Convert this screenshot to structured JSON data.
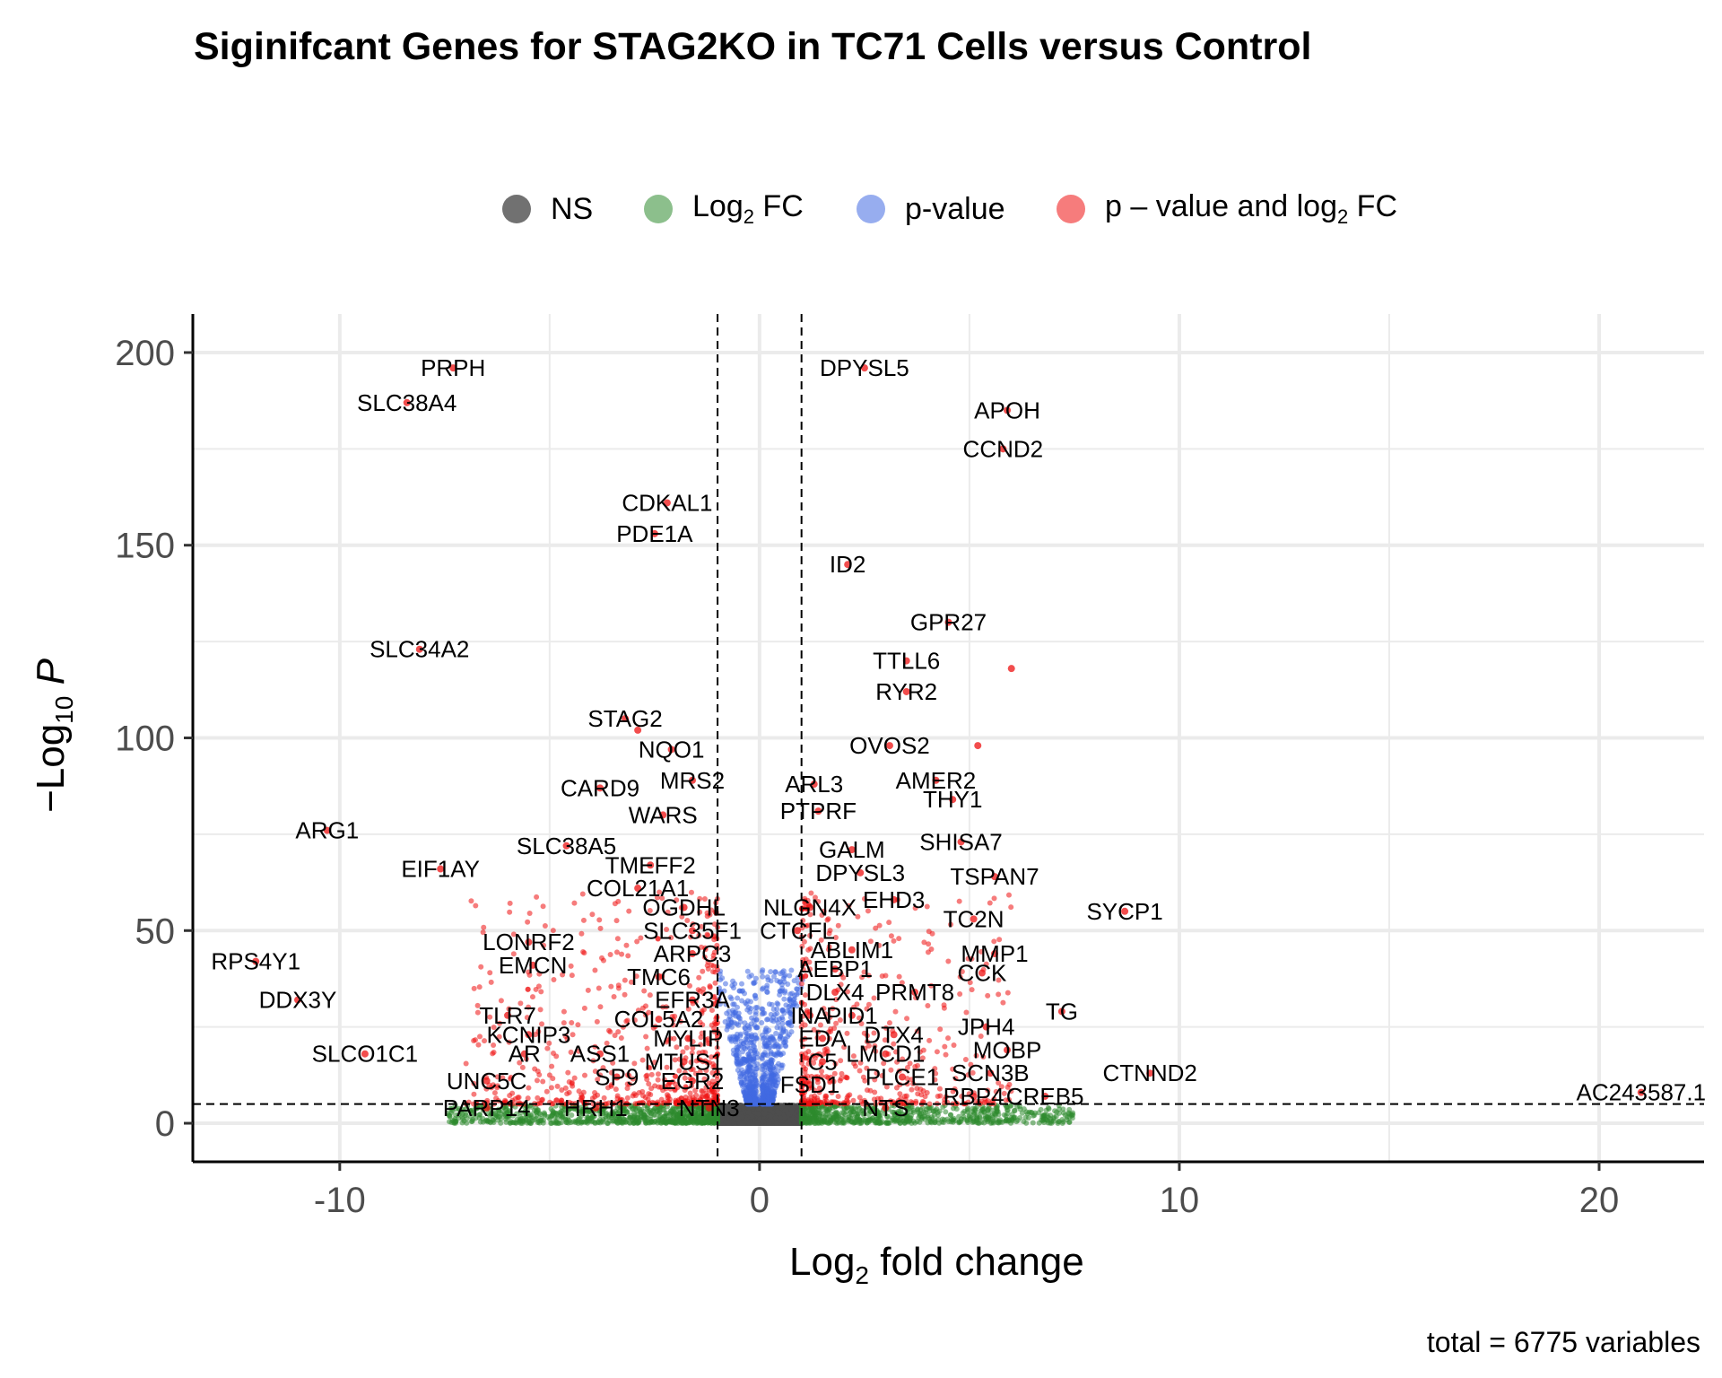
{
  "chart_data": {
    "type": "scatter",
    "title": "Siginifcant Genes for STAG2KO in TC71 Cells versus Control",
    "xlabel_main": "Log",
    "xlabel_sub": "2",
    "xlabel_rest": " fold change",
    "ylabel_main": "−Log",
    "ylabel_sub": "10",
    "ylabel_rest": " P",
    "caption": "total = 6775 variables",
    "xlim": [
      -13.5,
      22.5
    ],
    "ylim": [
      -10,
      210
    ],
    "x_ticks": [
      -10,
      0,
      10,
      20
    ],
    "y_ticks": [
      0,
      50,
      100,
      150,
      200
    ],
    "x_tick_labels": [
      "-10",
      "0",
      "10",
      "20"
    ],
    "y_tick_labels": [
      "0",
      "50",
      "100",
      "150",
      "200"
    ],
    "fc_cutoff": 1,
    "p_cutoff": 5,
    "grid": true,
    "legend_position": "top",
    "legend": [
      {
        "key": "NS",
        "label": "NS",
        "color": "#4d4d4d"
      },
      {
        "key": "fc",
        "label": "Log",
        "sub": "2",
        "rest": " FC",
        "color": "#2e8b2e"
      },
      {
        "key": "p",
        "label": "p-value",
        "color": "#4169e1"
      },
      {
        "key": "both",
        "label": "p – value and log",
        "sub": "2",
        "rest": " FC",
        "color": "#ee1111"
      }
    ],
    "labeled_genes": [
      {
        "name": "PRPH",
        "x": -7.3,
        "y": 196
      },
      {
        "name": "SLC38A4",
        "x": -8.4,
        "y": 187
      },
      {
        "name": "DPYSL5",
        "x": 2.5,
        "y": 196
      },
      {
        "name": "APOH",
        "x": 5.9,
        "y": 185
      },
      {
        "name": "CCND2",
        "x": 5.8,
        "y": 175
      },
      {
        "name": "CDKAL1",
        "x": -2.2,
        "y": 161
      },
      {
        "name": "PDE1A",
        "x": -2.5,
        "y": 153
      },
      {
        "name": "ID2",
        "x": 2.1,
        "y": 145
      },
      {
        "name": "GPR27",
        "x": 4.5,
        "y": 130
      },
      {
        "name": "SLC34A2",
        "x": -8.1,
        "y": 123
      },
      {
        "name": "TTLL6",
        "x": 3.5,
        "y": 120
      },
      {
        "name": "RYR2",
        "x": 3.5,
        "y": 112
      },
      {
        "name": "STAG2",
        "x": -3.2,
        "y": 105
      },
      {
        "name": "NQO1",
        "x": -2.1,
        "y": 97
      },
      {
        "name": "OVOS2",
        "x": 3.1,
        "y": 98
      },
      {
        "name": "MRS2",
        "x": -1.6,
        "y": 89
      },
      {
        "name": "CARD9",
        "x": -3.8,
        "y": 87
      },
      {
        "name": "ARL3",
        "x": 1.3,
        "y": 88
      },
      {
        "name": "AMER2",
        "x": 4.2,
        "y": 89
      },
      {
        "name": "THY1",
        "x": 4.6,
        "y": 84
      },
      {
        "name": "PTPRF",
        "x": 1.4,
        "y": 81
      },
      {
        "name": "WARS",
        "x": -2.3,
        "y": 80
      },
      {
        "name": "ARG1",
        "x": -10.3,
        "y": 76
      },
      {
        "name": "SLC38A5",
        "x": -4.6,
        "y": 72
      },
      {
        "name": "SHISA7",
        "x": 4.8,
        "y": 73
      },
      {
        "name": "GALM",
        "x": 2.2,
        "y": 71
      },
      {
        "name": "TMEFF2",
        "x": -2.6,
        "y": 67
      },
      {
        "name": "EIF1AY",
        "x": -7.6,
        "y": 66
      },
      {
        "name": "DPYSL3",
        "x": 2.4,
        "y": 65
      },
      {
        "name": "TSPAN7",
        "x": 5.6,
        "y": 64
      },
      {
        "name": "COL21A1",
        "x": -2.9,
        "y": 61
      },
      {
        "name": "EHD3",
        "x": 3.2,
        "y": 58
      },
      {
        "name": "OGDHL",
        "x": -1.8,
        "y": 56
      },
      {
        "name": "NLGN4X",
        "x": 1.2,
        "y": 56
      },
      {
        "name": "SYCP1",
        "x": 8.7,
        "y": 55
      },
      {
        "name": "TC2N",
        "x": 5.1,
        "y": 53
      },
      {
        "name": "CTCFL",
        "x": 0.9,
        "y": 50
      },
      {
        "name": "SLC35F1",
        "x": -1.6,
        "y": 50
      },
      {
        "name": "LONRF2",
        "x": -5.5,
        "y": 47
      },
      {
        "name": "ABLIM1",
        "x": 2.2,
        "y": 45
      },
      {
        "name": "MMP1",
        "x": 5.6,
        "y": 44
      },
      {
        "name": "ARPC3",
        "x": -1.6,
        "y": 44
      },
      {
        "name": "RPS4Y1",
        "x": -12.0,
        "y": 42
      },
      {
        "name": "EMCN",
        "x": -5.4,
        "y": 41
      },
      {
        "name": "AEBP1",
        "x": 1.8,
        "y": 40
      },
      {
        "name": "CCK",
        "x": 5.3,
        "y": 39
      },
      {
        "name": "TMC6",
        "x": -2.4,
        "y": 38
      },
      {
        "name": "DLX4",
        "x": 1.8,
        "y": 34
      },
      {
        "name": "PRMT8",
        "x": 3.7,
        "y": 34
      },
      {
        "name": "DDX3Y",
        "x": -11.0,
        "y": 32
      },
      {
        "name": "EFR3A",
        "x": -1.6,
        "y": 32
      },
      {
        "name": "TLR7",
        "x": -6.0,
        "y": 28
      },
      {
        "name": "TG",
        "x": 7.2,
        "y": 29
      },
      {
        "name": "PID1",
        "x": 2.2,
        "y": 28
      },
      {
        "name": "INA",
        "x": 1.2,
        "y": 28
      },
      {
        "name": "COL5A2",
        "x": -2.4,
        "y": 27
      },
      {
        "name": "JPH4",
        "x": 5.4,
        "y": 25
      },
      {
        "name": "KCNIP3",
        "x": -5.5,
        "y": 23
      },
      {
        "name": "DTX4",
        "x": 3.2,
        "y": 23
      },
      {
        "name": "EDA",
        "x": 1.5,
        "y": 22
      },
      {
        "name": "MYLIP",
        "x": -1.7,
        "y": 22
      },
      {
        "name": "MOBP",
        "x": 5.9,
        "y": 19
      },
      {
        "name": "SLCO1C1",
        "x": -9.4,
        "y": 18
      },
      {
        "name": "AR",
        "x": -5.6,
        "y": 18
      },
      {
        "name": "ASS1",
        "x": -3.8,
        "y": 18
      },
      {
        "name": "LMCD1",
        "x": 3.0,
        "y": 18
      },
      {
        "name": "MTUS1",
        "x": -1.8,
        "y": 16
      },
      {
        "name": "C5",
        "x": 1.5,
        "y": 16
      },
      {
        "name": "CTNND2",
        "x": 9.3,
        "y": 13
      },
      {
        "name": "SCN3B",
        "x": 5.5,
        "y": 13
      },
      {
        "name": "SP9",
        "x": -3.4,
        "y": 12
      },
      {
        "name": "PLCE1",
        "x": 3.4,
        "y": 12
      },
      {
        "name": "UNC5C",
        "x": -6.5,
        "y": 11
      },
      {
        "name": "EGR2",
        "x": -1.6,
        "y": 11
      },
      {
        "name": "FSD1",
        "x": 1.2,
        "y": 10
      },
      {
        "name": "AC243587.1",
        "x": 21.0,
        "y": 8
      },
      {
        "name": "RBP4",
        "x": 5.1,
        "y": 7
      },
      {
        "name": "CREB5",
        "x": 6.8,
        "y": 7
      },
      {
        "name": "PARP14",
        "x": -6.5,
        "y": 4
      },
      {
        "name": "HRH1",
        "x": -3.9,
        "y": 4
      },
      {
        "name": "NTN3",
        "x": -1.2,
        "y": 4
      },
      {
        "name": "NTS",
        "x": 3.0,
        "y": 4
      }
    ],
    "extra_points": [
      {
        "x": 6.0,
        "y": 118
      },
      {
        "x": 5.2,
        "y": 98
      },
      {
        "x": -2.9,
        "y": 102
      }
    ],
    "background_points": {
      "NS_count": 3300,
      "fc_count": 1500,
      "p_count": 900,
      "both_count": 1075
    }
  }
}
